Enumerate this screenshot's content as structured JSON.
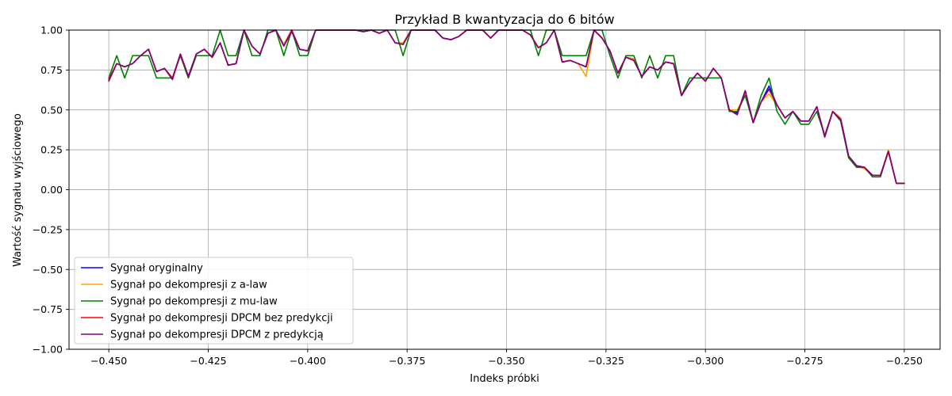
{
  "chart_data": {
    "type": "line",
    "title": "Przykład B kwantyzacja do 6 bitów",
    "xlabel": "Indeks próbki",
    "ylabel": "Wartość sygnału wyjściowego",
    "xlim": [
      -0.46,
      -0.241
    ],
    "ylim": [
      -1.0,
      1.0
    ],
    "xticks": [
      -0.45,
      -0.425,
      -0.4,
      -0.375,
      -0.35,
      -0.325,
      -0.3,
      -0.275,
      -0.25
    ],
    "xtick_labels": [
      "−0.450",
      "−0.425",
      "−0.400",
      "−0.375",
      "−0.350",
      "−0.325",
      "−0.300",
      "−0.275",
      "−0.250"
    ],
    "yticks": [
      -1.0,
      -0.75,
      -0.5,
      -0.25,
      0.0,
      0.25,
      0.5,
      0.75,
      1.0
    ],
    "ytick_labels": [
      "−1.00",
      "−0.75",
      "−0.50",
      "−0.25",
      "0.00",
      "0.25",
      "0.50",
      "0.75",
      "1.00"
    ],
    "grid": true,
    "legend_position": "lower-left",
    "series": [
      {
        "name": "Sygnał oryginalny",
        "color": "#0000ff",
        "x": [
          -0.45,
          -0.448,
          -0.446,
          -0.444,
          -0.442,
          -0.44,
          -0.438,
          -0.436,
          -0.434,
          -0.432,
          -0.43,
          -0.428,
          -0.426,
          -0.424,
          -0.422,
          -0.42,
          -0.418,
          -0.416,
          -0.414,
          -0.412,
          -0.41,
          -0.408,
          -0.406,
          -0.404,
          -0.402,
          -0.4,
          -0.398,
          -0.396,
          -0.394,
          -0.392,
          -0.39,
          -0.388,
          -0.386,
          -0.384,
          -0.382,
          -0.38,
          -0.378,
          -0.376,
          -0.374,
          -0.372,
          -0.37,
          -0.368,
          -0.366,
          -0.364,
          -0.362,
          -0.36,
          -0.358,
          -0.356,
          -0.354,
          -0.352,
          -0.35,
          -0.348,
          -0.346,
          -0.344,
          -0.342,
          -0.34,
          -0.338,
          -0.336,
          -0.334,
          -0.332,
          -0.33,
          -0.328,
          -0.326,
          -0.324,
          -0.322,
          -0.32,
          -0.318,
          -0.316,
          -0.314,
          -0.312,
          -0.31,
          -0.308,
          -0.306,
          -0.304,
          -0.302,
          -0.3,
          -0.298,
          -0.296,
          -0.294,
          -0.292,
          -0.29,
          -0.288,
          -0.286,
          -0.284,
          -0.282,
          -0.28,
          -0.278,
          -0.276,
          -0.274,
          -0.272,
          -0.27,
          -0.268,
          -0.266,
          -0.264,
          -0.262,
          -0.26,
          -0.258,
          -0.256,
          -0.254,
          -0.252,
          -0.25
        ],
        "y": [
          0.69,
          0.79,
          0.77,
          0.79,
          0.84,
          0.88,
          0.74,
          0.76,
          0.7,
          0.85,
          0.71,
          0.85,
          0.88,
          0.83,
          0.92,
          0.78,
          0.79,
          1.0,
          0.9,
          0.85,
          0.98,
          1.0,
          0.91,
          1.0,
          0.88,
          0.87,
          1.0,
          1.0,
          1.0,
          1.0,
          1.0,
          1.0,
          0.99,
          1.0,
          0.98,
          1.0,
          0.92,
          0.92,
          1.0,
          1.0,
          1.0,
          1.0,
          0.95,
          0.94,
          0.96,
          1.0,
          1.0,
          1.0,
          0.95,
          1.0,
          1.0,
          1.0,
          1.0,
          0.97,
          0.89,
          0.92,
          1.0,
          0.8,
          0.81,
          0.79,
          0.77,
          1.0,
          0.95,
          0.87,
          0.73,
          0.83,
          0.82,
          0.71,
          0.77,
          0.75,
          0.8,
          0.79,
          0.59,
          0.67,
          0.73,
          0.68,
          0.76,
          0.7,
          0.5,
          0.48,
          0.62,
          0.42,
          0.55,
          0.65,
          0.53,
          0.45,
          0.49,
          0.43,
          0.43,
          0.52,
          0.34,
          0.49,
          0.45,
          0.21,
          0.15,
          0.14,
          0.09,
          0.09,
          0.24,
          0.04,
          0.04
        ]
      },
      {
        "name": "Sygnał po dekompresji z a-law",
        "color": "#ffa500",
        "x": [
          -0.45,
          -0.448,
          -0.446,
          -0.444,
          -0.442,
          -0.44,
          -0.438,
          -0.436,
          -0.434,
          -0.432,
          -0.43,
          -0.428,
          -0.426,
          -0.424,
          -0.422,
          -0.42,
          -0.418,
          -0.416,
          -0.414,
          -0.412,
          -0.41,
          -0.408,
          -0.406,
          -0.404,
          -0.402,
          -0.4,
          -0.398,
          -0.396,
          -0.394,
          -0.392,
          -0.39,
          -0.388,
          -0.386,
          -0.384,
          -0.382,
          -0.38,
          -0.378,
          -0.376,
          -0.374,
          -0.372,
          -0.37,
          -0.368,
          -0.366,
          -0.364,
          -0.362,
          -0.36,
          -0.358,
          -0.356,
          -0.354,
          -0.352,
          -0.35,
          -0.348,
          -0.346,
          -0.344,
          -0.342,
          -0.34,
          -0.338,
          -0.336,
          -0.334,
          -0.332,
          -0.33,
          -0.328,
          -0.326,
          -0.324,
          -0.322,
          -0.32,
          -0.318,
          -0.316,
          -0.314,
          -0.312,
          -0.31,
          -0.308,
          -0.306,
          -0.304,
          -0.302,
          -0.3,
          -0.298,
          -0.296,
          -0.294,
          -0.292,
          -0.29,
          -0.288,
          -0.286,
          -0.284,
          -0.282,
          -0.28,
          -0.278,
          -0.276,
          -0.274,
          -0.272,
          -0.27,
          -0.268,
          -0.266,
          -0.264,
          -0.262,
          -0.26,
          -0.258,
          -0.256,
          -0.254,
          -0.252,
          -0.25
        ],
        "y": [
          0.69,
          0.79,
          0.77,
          0.79,
          0.84,
          0.88,
          0.74,
          0.76,
          0.7,
          0.85,
          0.71,
          0.85,
          0.88,
          0.83,
          0.92,
          0.78,
          0.79,
          1.0,
          0.9,
          0.85,
          0.98,
          1.0,
          0.91,
          1.0,
          0.88,
          0.87,
          1.0,
          1.0,
          1.0,
          1.0,
          1.0,
          1.0,
          0.99,
          1.0,
          0.98,
          1.0,
          0.92,
          0.92,
          1.0,
          1.0,
          1.0,
          1.0,
          0.95,
          0.94,
          0.96,
          1.0,
          1.0,
          1.0,
          0.95,
          1.0,
          1.0,
          1.0,
          1.0,
          0.97,
          0.89,
          0.92,
          1.0,
          0.8,
          0.81,
          0.79,
          0.71,
          1.0,
          0.95,
          0.87,
          0.73,
          0.83,
          0.82,
          0.71,
          0.77,
          0.75,
          0.8,
          0.79,
          0.59,
          0.67,
          0.73,
          0.68,
          0.76,
          0.7,
          0.5,
          0.5,
          0.6,
          0.42,
          0.55,
          0.6,
          0.53,
          0.45,
          0.49,
          0.43,
          0.43,
          0.52,
          0.34,
          0.49,
          0.45,
          0.2,
          0.15,
          0.13,
          0.09,
          0.09,
          0.25,
          0.04,
          0.04
        ]
      },
      {
        "name": "Sygnał po dekompresji z mu-law",
        "color": "#008000",
        "x": [
          -0.45,
          -0.448,
          -0.446,
          -0.444,
          -0.442,
          -0.44,
          -0.438,
          -0.436,
          -0.434,
          -0.432,
          -0.43,
          -0.428,
          -0.426,
          -0.424,
          -0.422,
          -0.42,
          -0.418,
          -0.416,
          -0.414,
          -0.412,
          -0.41,
          -0.408,
          -0.406,
          -0.404,
          -0.402,
          -0.4,
          -0.398,
          -0.396,
          -0.394,
          -0.392,
          -0.39,
          -0.388,
          -0.386,
          -0.384,
          -0.382,
          -0.38,
          -0.378,
          -0.376,
          -0.374,
          -0.372,
          -0.37,
          -0.368,
          -0.366,
          -0.364,
          -0.362,
          -0.36,
          -0.358,
          -0.356,
          -0.354,
          -0.352,
          -0.35,
          -0.348,
          -0.346,
          -0.344,
          -0.342,
          -0.34,
          -0.338,
          -0.336,
          -0.334,
          -0.332,
          -0.33,
          -0.328,
          -0.326,
          -0.324,
          -0.322,
          -0.32,
          -0.318,
          -0.316,
          -0.314,
          -0.312,
          -0.31,
          -0.308,
          -0.306,
          -0.304,
          -0.302,
          -0.3,
          -0.298,
          -0.296,
          -0.294,
          -0.292,
          -0.29,
          -0.288,
          -0.286,
          -0.284,
          -0.282,
          -0.28,
          -0.278,
          -0.276,
          -0.274,
          -0.272,
          -0.27,
          -0.268,
          -0.266,
          -0.264,
          -0.262,
          -0.26,
          -0.258,
          -0.256,
          -0.254,
          -0.252,
          -0.25
        ],
        "y": [
          0.7,
          0.84,
          0.7,
          0.84,
          0.84,
          0.84,
          0.7,
          0.7,
          0.7,
          0.84,
          0.7,
          0.84,
          0.84,
          0.84,
          1.0,
          0.84,
          0.84,
          1.0,
          0.84,
          0.84,
          1.0,
          1.0,
          0.84,
          1.0,
          0.84,
          0.84,
          1.0,
          1.0,
          1.0,
          1.0,
          1.0,
          1.0,
          1.0,
          1.0,
          1.0,
          1.0,
          1.0,
          0.84,
          1.0,
          1.0,
          1.0,
          1.0,
          0.95,
          0.94,
          0.96,
          1.0,
          1.0,
          1.0,
          1.0,
          1.0,
          1.0,
          1.0,
          1.0,
          1.0,
          0.84,
          1.0,
          1.0,
          0.84,
          0.84,
          0.84,
          0.84,
          1.0,
          1.0,
          0.84,
          0.7,
          0.84,
          0.84,
          0.7,
          0.84,
          0.7,
          0.84,
          0.84,
          0.59,
          0.7,
          0.7,
          0.7,
          0.7,
          0.7,
          0.49,
          0.49,
          0.59,
          0.42,
          0.59,
          0.7,
          0.49,
          0.41,
          0.49,
          0.41,
          0.41,
          0.49,
          0.34,
          0.49,
          0.43,
          0.2,
          0.14,
          0.14,
          0.08,
          0.08,
          0.24,
          0.04,
          0.04
        ]
      },
      {
        "name": "Sygnał po dekompresji DPCM bez predykcji",
        "color": "#ff0000",
        "x": [
          -0.45,
          -0.448,
          -0.446,
          -0.444,
          -0.442,
          -0.44,
          -0.438,
          -0.436,
          -0.434,
          -0.432,
          -0.43,
          -0.428,
          -0.426,
          -0.424,
          -0.422,
          -0.42,
          -0.418,
          -0.416,
          -0.414,
          -0.412,
          -0.41,
          -0.408,
          -0.406,
          -0.404,
          -0.402,
          -0.4,
          -0.398,
          -0.396,
          -0.394,
          -0.392,
          -0.39,
          -0.388,
          -0.386,
          -0.384,
          -0.382,
          -0.38,
          -0.378,
          -0.376,
          -0.374,
          -0.372,
          -0.37,
          -0.368,
          -0.366,
          -0.364,
          -0.362,
          -0.36,
          -0.358,
          -0.356,
          -0.354,
          -0.352,
          -0.35,
          -0.348,
          -0.346,
          -0.344,
          -0.342,
          -0.34,
          -0.338,
          -0.336,
          -0.334,
          -0.332,
          -0.33,
          -0.328,
          -0.326,
          -0.324,
          -0.322,
          -0.32,
          -0.318,
          -0.316,
          -0.314,
          -0.312,
          -0.31,
          -0.308,
          -0.306,
          -0.304,
          -0.302,
          -0.3,
          -0.298,
          -0.296,
          -0.294,
          -0.292,
          -0.29,
          -0.288,
          -0.286,
          -0.284,
          -0.282,
          -0.28,
          -0.278,
          -0.276,
          -0.274,
          -0.272,
          -0.27,
          -0.268,
          -0.266,
          -0.264,
          -0.262,
          -0.26,
          -0.258,
          -0.256,
          -0.254,
          -0.252,
          -0.25
        ],
        "y": [
          0.69,
          0.79,
          0.77,
          0.79,
          0.84,
          0.88,
          0.74,
          0.76,
          0.7,
          0.85,
          0.71,
          0.85,
          0.88,
          0.83,
          0.92,
          0.78,
          0.79,
          1.0,
          0.9,
          0.85,
          0.98,
          1.0,
          0.9,
          1.0,
          0.88,
          0.87,
          1.0,
          1.0,
          1.0,
          1.0,
          1.0,
          1.0,
          0.99,
          1.0,
          0.98,
          1.0,
          0.92,
          0.91,
          1.0,
          1.0,
          1.0,
          1.0,
          0.95,
          0.94,
          0.96,
          1.0,
          1.0,
          1.0,
          0.95,
          1.0,
          1.0,
          1.0,
          1.0,
          0.97,
          0.89,
          0.92,
          1.0,
          0.8,
          0.81,
          0.79,
          0.77,
          1.0,
          0.95,
          0.87,
          0.73,
          0.83,
          0.81,
          0.71,
          0.77,
          0.75,
          0.8,
          0.79,
          0.59,
          0.67,
          0.73,
          0.68,
          0.76,
          0.7,
          0.5,
          0.47,
          0.62,
          0.42,
          0.55,
          0.63,
          0.53,
          0.45,
          0.49,
          0.43,
          0.43,
          0.52,
          0.33,
          0.49,
          0.44,
          0.21,
          0.15,
          0.14,
          0.09,
          0.09,
          0.24,
          0.04,
          0.04
        ]
      },
      {
        "name": "Sygnał po dekompresji DPCM z predykcją",
        "color": "#800080",
        "x": [
          -0.45,
          -0.448,
          -0.446,
          -0.444,
          -0.442,
          -0.44,
          -0.438,
          -0.436,
          -0.434,
          -0.432,
          -0.43,
          -0.428,
          -0.426,
          -0.424,
          -0.422,
          -0.42,
          -0.418,
          -0.416,
          -0.414,
          -0.412,
          -0.41,
          -0.408,
          -0.406,
          -0.404,
          -0.402,
          -0.4,
          -0.398,
          -0.396,
          -0.394,
          -0.392,
          -0.39,
          -0.388,
          -0.386,
          -0.384,
          -0.382,
          -0.38,
          -0.378,
          -0.376,
          -0.374,
          -0.372,
          -0.37,
          -0.368,
          -0.366,
          -0.364,
          -0.362,
          -0.36,
          -0.358,
          -0.356,
          -0.354,
          -0.352,
          -0.35,
          -0.348,
          -0.346,
          -0.344,
          -0.342,
          -0.34,
          -0.338,
          -0.336,
          -0.334,
          -0.332,
          -0.33,
          -0.328,
          -0.326,
          -0.324,
          -0.322,
          -0.32,
          -0.318,
          -0.316,
          -0.314,
          -0.312,
          -0.31,
          -0.308,
          -0.306,
          -0.304,
          -0.302,
          -0.3,
          -0.298,
          -0.296,
          -0.294,
          -0.292,
          -0.29,
          -0.288,
          -0.286,
          -0.284,
          -0.282,
          -0.28,
          -0.278,
          -0.276,
          -0.274,
          -0.272,
          -0.27,
          -0.268,
          -0.266,
          -0.264,
          -0.262,
          -0.26,
          -0.258,
          -0.256,
          -0.254,
          -0.252,
          -0.25
        ],
        "y": [
          0.68,
          0.79,
          0.77,
          0.79,
          0.84,
          0.88,
          0.74,
          0.76,
          0.69,
          0.85,
          0.71,
          0.85,
          0.88,
          0.83,
          0.92,
          0.78,
          0.79,
          1.0,
          0.9,
          0.85,
          0.98,
          1.0,
          0.9,
          0.99,
          0.88,
          0.87,
          1.0,
          1.0,
          1.0,
          1.0,
          1.0,
          1.0,
          0.99,
          1.0,
          0.98,
          1.0,
          0.92,
          0.91,
          1.0,
          1.0,
          1.0,
          1.0,
          0.95,
          0.94,
          0.96,
          1.0,
          1.0,
          1.0,
          0.95,
          1.0,
          1.0,
          1.0,
          1.0,
          0.97,
          0.89,
          0.92,
          1.0,
          0.8,
          0.81,
          0.79,
          0.77,
          1.0,
          0.95,
          0.87,
          0.73,
          0.83,
          0.81,
          0.71,
          0.77,
          0.75,
          0.8,
          0.79,
          0.59,
          0.67,
          0.73,
          0.68,
          0.76,
          0.7,
          0.5,
          0.47,
          0.62,
          0.42,
          0.55,
          0.63,
          0.53,
          0.45,
          0.49,
          0.43,
          0.43,
          0.52,
          0.33,
          0.49,
          0.44,
          0.21,
          0.15,
          0.14,
          0.09,
          0.09,
          0.24,
          0.04,
          0.04
        ]
      }
    ]
  }
}
